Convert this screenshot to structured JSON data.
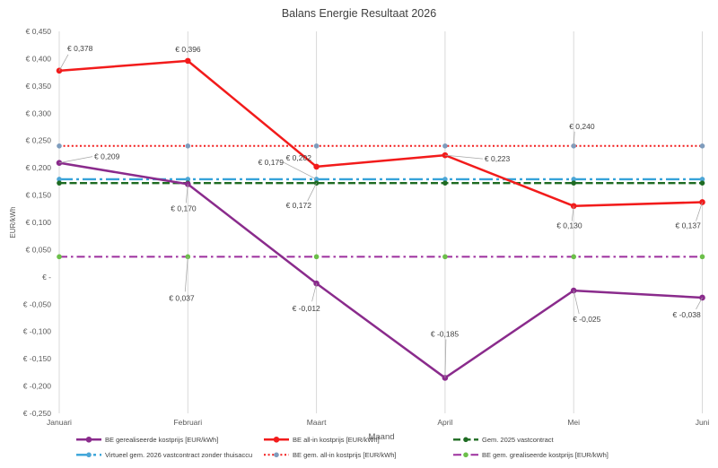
{
  "chart_data": {
    "type": "line",
    "title": "Balans Energie Resultaat 2026",
    "xlabel": "Maand",
    "ylabel": "EUR/kWh",
    "categories": [
      "Januari",
      "Februari",
      "Maart",
      "April",
      "Mei",
      "Juni"
    ],
    "ylim": [
      -0.25,
      0.45
    ],
    "yticks": [
      {
        "value": 0.45,
        "label": "€ 0,450"
      },
      {
        "value": 0.4,
        "label": "€ 0,400"
      },
      {
        "value": 0.35,
        "label": "€ 0,350"
      },
      {
        "value": 0.3,
        "label": "€ 0,300"
      },
      {
        "value": 0.25,
        "label": "€ 0,250"
      },
      {
        "value": 0.2,
        "label": "€ 0,200"
      },
      {
        "value": 0.15,
        "label": "€ 0,150"
      },
      {
        "value": 0.1,
        "label": "€ 0,100"
      },
      {
        "value": 0.05,
        "label": "€ 0,050"
      },
      {
        "value": 0.0,
        "label": "€ -"
      },
      {
        "value": -0.05,
        "label": "€ -0,050"
      },
      {
        "value": -0.1,
        "label": "€ -0,100"
      },
      {
        "value": -0.15,
        "label": "€ -0,150"
      },
      {
        "value": -0.2,
        "label": "€ -0,200"
      },
      {
        "value": -0.25,
        "label": "€ -0,250"
      }
    ],
    "grid": {
      "vertical": true,
      "horizontal": false
    },
    "legend_position": "bottom",
    "series": [
      {
        "name": "BE gerealiseerde kostprijs [EUR/kWh]",
        "values": [
          0.209,
          0.17,
          -0.012,
          -0.185,
          -0.025,
          -0.038
        ],
        "labels": [
          "€ 0,209",
          "€ 0,170",
          "€ -0,012",
          "€ -0,185",
          "€ -0,025",
          "€ -0,038"
        ],
        "color": "#8A2B8C",
        "marker_color": "#8A2B8C"
      },
      {
        "name": "BE all-in kostprijs [EUR/kWh]",
        "values": [
          0.378,
          0.396,
          0.202,
          0.223,
          0.13,
          0.137
        ],
        "labels": [
          "€ 0,378",
          "€ 0,396",
          "€ 0,202",
          "€ 0,223",
          "€ 0,130",
          "€ 0,137"
        ],
        "color": "#F21B1B",
        "marker_color": "#F21B1B"
      },
      {
        "name": "Gem. 2025 vastcontract",
        "values": [
          0.172,
          0.172,
          0.172,
          0.172,
          0.172,
          0.172
        ],
        "labels": [
          null,
          null,
          "€ 0,172",
          null,
          null,
          null
        ],
        "color": "#1E6B22",
        "marker_color": "#1E6B22"
      },
      {
        "name": "Virtueel gem. 2026 vastcontract zonder thuisaccu",
        "values": [
          0.179,
          0.179,
          0.179,
          0.179,
          0.179,
          0.179
        ],
        "labels": [
          null,
          null,
          "€ 0,179",
          null,
          null,
          null
        ],
        "color": "#36A3D9",
        "marker_color": "#4DA6D6"
      },
      {
        "name": "BE gem. all-in kostprijs [EUR/kWh]",
        "values": [
          0.24,
          0.24,
          0.24,
          0.24,
          0.24,
          0.24
        ],
        "labels": [
          null,
          null,
          null,
          null,
          "€ 0,240",
          null
        ],
        "color": "#F21B1B",
        "marker_color": "#7E9CBD"
      },
      {
        "name": "BE gem. grealiseerde kostprijs [EUR/kWh]",
        "values": [
          0.037,
          0.037,
          0.037,
          0.037,
          0.037,
          0.037
        ],
        "labels": [
          null,
          "€ 0,037",
          null,
          null,
          null,
          null
        ],
        "color": "#9C2F9E",
        "marker_color": "#6CBF4A"
      }
    ]
  }
}
